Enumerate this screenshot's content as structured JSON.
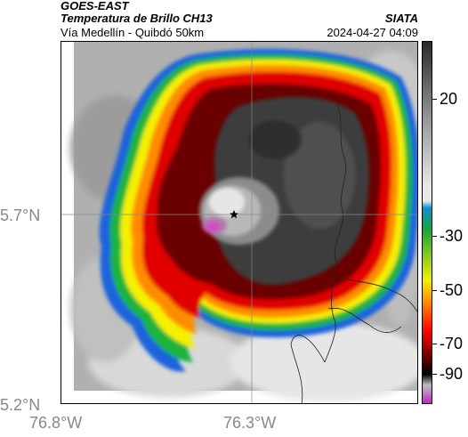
{
  "header": {
    "satellite": "GOES-EAST",
    "product": "Temperatura de Brillo CH13",
    "location": "Vía Medellín - Quibdó 50km",
    "source": "SIATA",
    "datetime": "2024-04-27 04:09"
  },
  "axes": {
    "lat_labels": [
      "5.7°N",
      "5.2°N"
    ],
    "lon_labels": [
      "76.8°W",
      "76.3°W"
    ]
  },
  "colorbar": {
    "ticks": [
      "20",
      "-30",
      "-50",
      "-70",
      "-90"
    ],
    "colors": [
      "#2a2a2a",
      "#9a9a9a",
      "#e8e8e8",
      "#0a8fd0",
      "#1aa43c",
      "#f0f000",
      "#ff8c00",
      "#ff0000",
      "#5a0000",
      "#000000",
      "#bdbdbd",
      "#c02ac0"
    ]
  },
  "map": {
    "marker": "star-icon",
    "colors": {
      "background_gray": "#b4b4b4",
      "light_gray": "#dcdcdc",
      "core_dark": "#3c3c3c",
      "ring_red": "#e00000",
      "ring_darkred": "#6a0000",
      "ring_yellow": "#f4f000",
      "ring_green": "#1eb43c",
      "ring_blue": "#1e64dc",
      "magenta": "#d24cc8"
    }
  }
}
